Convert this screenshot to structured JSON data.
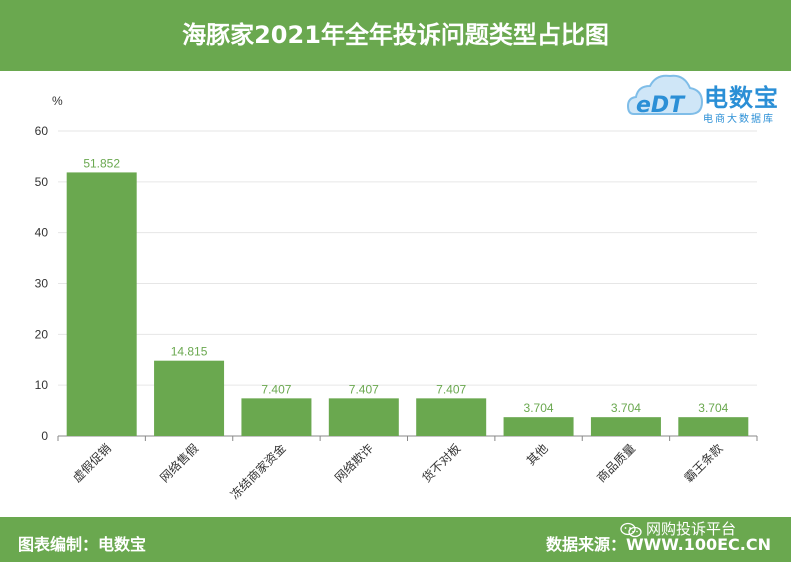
{
  "header": {
    "title": "海豚家2021年全年投诉问题类型占比图"
  },
  "logo": {
    "name": "电数宝",
    "subtitle": "电商大数据库",
    "mark": "eDT"
  },
  "footer": {
    "left": "图表编制：电数宝",
    "right": "数据来源：WWW.100EC.CN",
    "wechat": "网购投诉平台"
  },
  "colors": {
    "bar": "#6aa84f",
    "header": "#6aa84f",
    "logo": "#2b8fd6",
    "label": "#6aa84f"
  },
  "chart_data": {
    "type": "bar",
    "title": "海豚家2021年全年投诉问题类型占比图",
    "ylabel": "%",
    "xlabel": "",
    "ylim": [
      0,
      60
    ],
    "yticks": [
      0,
      10,
      20,
      30,
      40,
      50,
      60
    ],
    "grid": true,
    "categories": [
      "虚假促销",
      "网络售假",
      "冻结商家资金",
      "网络欺诈",
      "货不对板",
      "其他",
      "商品质量",
      "霸王条款"
    ],
    "values": [
      51.852,
      14.815,
      7.407,
      7.407,
      7.407,
      3.704,
      3.704,
      3.704
    ],
    "value_labels": [
      "51.852",
      "14.815",
      "7.407",
      "7.407",
      "7.407",
      "3.704",
      "3.704",
      "3.704"
    ]
  }
}
